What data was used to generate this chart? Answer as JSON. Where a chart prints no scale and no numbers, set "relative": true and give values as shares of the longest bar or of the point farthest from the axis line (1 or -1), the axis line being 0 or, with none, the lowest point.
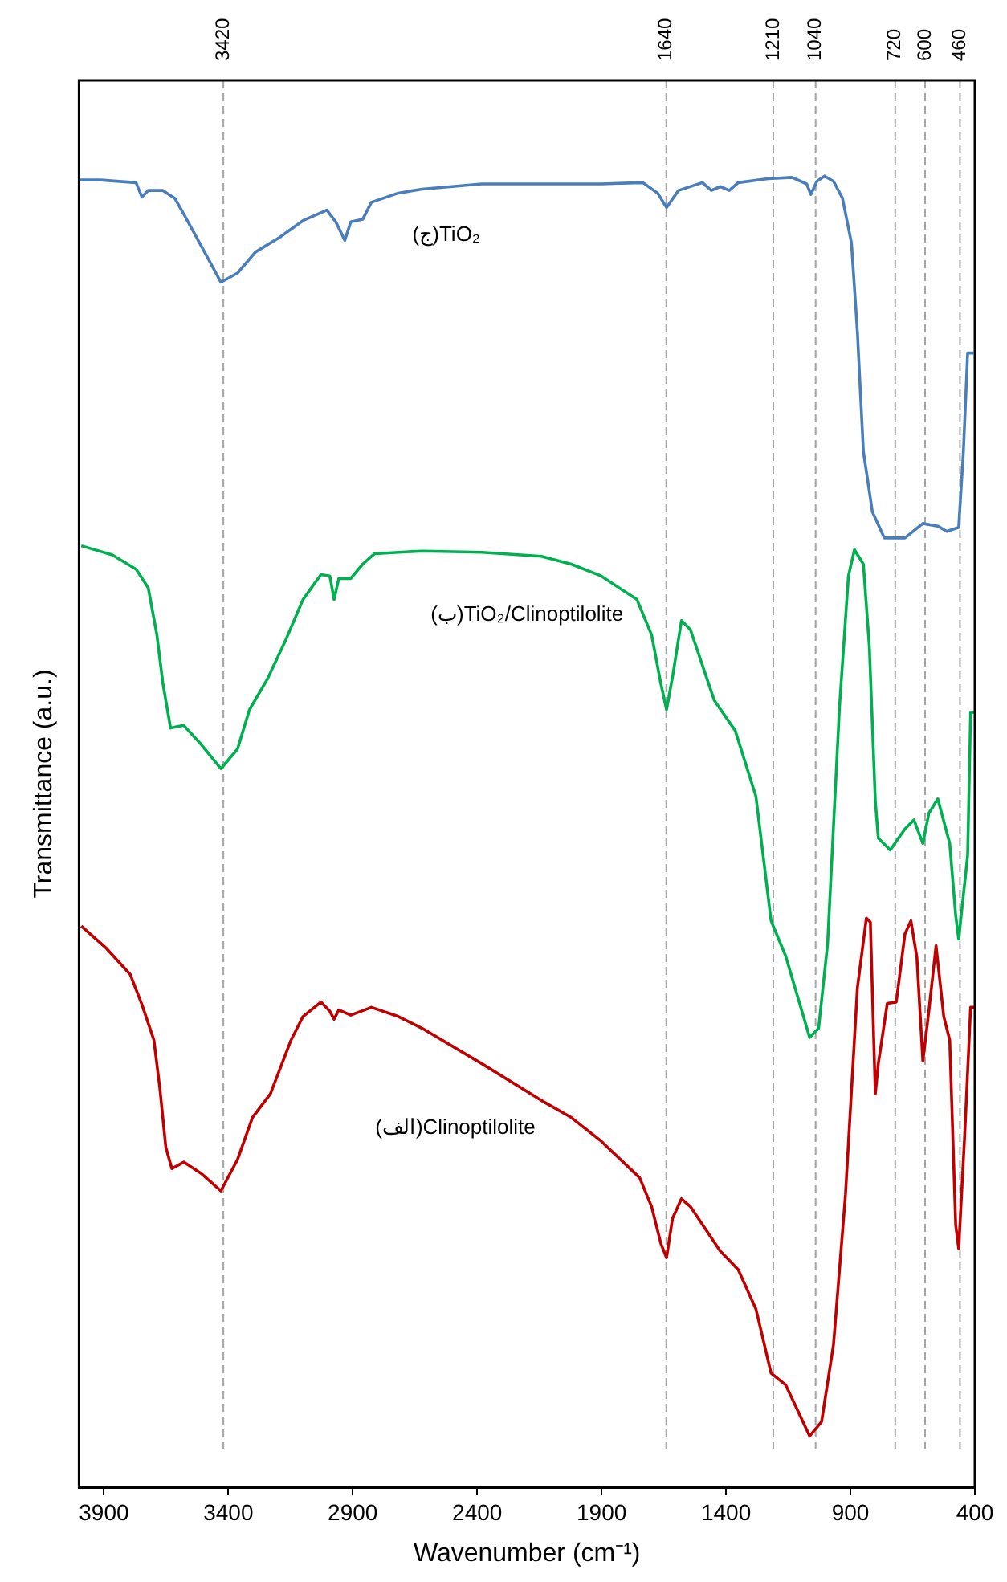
{
  "chart_data": {
    "type": "line",
    "relative": true,
    "xlabel": "Wavenumber (cm⁻¹)",
    "ylabel": "Transmittance (a.u.)",
    "xlim": [
      4000,
      400
    ],
    "xticks": [
      3900,
      3400,
      2900,
      2400,
      1900,
      1400,
      900,
      400
    ],
    "grid": false,
    "legend": false,
    "marker": "none",
    "line_style": "solid",
    "tick_labels": "x",
    "series": [
      {
        "name": "(ج)TiO₂",
        "color": "#4a7ebb",
        "x": [
          3998,
          3914,
          3771,
          3747,
          3722,
          3663,
          3615,
          3579,
          3507,
          3430,
          3363,
          3291,
          3196,
          3100,
          3004,
          2968,
          2932,
          2908,
          2860,
          2825,
          2717,
          2621,
          2381,
          1902,
          1734,
          1675,
          1639,
          1591,
          1495,
          1459,
          1423,
          1387,
          1351,
          1232,
          1135,
          1076,
          1059,
          1035,
          1004,
          968,
          932,
          896,
          872,
          848,
          812,
          764,
          681,
          609,
          549,
          513,
          465,
          446,
          429,
          405
        ],
        "values": [
          0.997,
          0.997,
          0.995,
          0.984,
          0.989,
          0.989,
          0.983,
          0.971,
          0.946,
          0.919,
          0.926,
          0.942,
          0.953,
          0.966,
          0.974,
          0.965,
          0.951,
          0.965,
          0.967,
          0.98,
          0.987,
          0.99,
          0.994,
          0.994,
          0.995,
          0.987,
          0.976,
          0.989,
          0.995,
          0.989,
          0.992,
          0.989,
          0.995,
          0.998,
          0.999,
          0.994,
          0.986,
          0.996,
          1.0,
          0.996,
          0.983,
          0.949,
          0.881,
          0.79,
          0.744,
          0.724,
          0.724,
          0.735,
          0.733,
          0.729,
          0.732,
          0.79,
          0.865,
          0.865
        ]
      },
      {
        "name": "(ب)TiO₂/Clinoptilolite",
        "color": "#00b050",
        "x": [
          3991,
          3866,
          3770,
          3722,
          3687,
          3663,
          3632,
          3579,
          3507,
          3430,
          3363,
          3315,
          3244,
          3172,
          3100,
          3028,
          2992,
          2975,
          2956,
          2908,
          2860,
          2812,
          2621,
          2381,
          2142,
          2022,
          1902,
          1758,
          1699,
          1662,
          1639,
          1615,
          1579,
          1543,
          1447,
          1363,
          1280,
          1219,
          1160,
          1064,
          1028,
          992,
          944,
          908,
          884,
          848,
          824,
          800,
          788,
          740,
          681,
          645,
          609,
          585,
          549,
          501,
          477,
          465,
          429,
          417,
          400
        ],
        "values": [
          0.718,
          0.711,
          0.7,
          0.686,
          0.65,
          0.613,
          0.579,
          0.581,
          0.566,
          0.548,
          0.563,
          0.593,
          0.616,
          0.645,
          0.677,
          0.696,
          0.695,
          0.677,
          0.693,
          0.693,
          0.704,
          0.712,
          0.714,
          0.713,
          0.71,
          0.704,
          0.695,
          0.677,
          0.65,
          0.613,
          0.593,
          0.618,
          0.661,
          0.654,
          0.6,
          0.577,
          0.527,
          0.432,
          0.405,
          0.343,
          0.35,
          0.414,
          0.595,
          0.695,
          0.715,
          0.704,
          0.641,
          0.523,
          0.495,
          0.486,
          0.502,
          0.509,
          0.491,
          0.514,
          0.525,
          0.491,
          0.436,
          0.418,
          0.482,
          0.591,
          0.591
        ]
      },
      {
        "name": "(الف)Clinoptilolite",
        "color": "#c00000",
        "x": [
          3991,
          3890,
          3794,
          3747,
          3699,
          3675,
          3651,
          3627,
          3579,
          3507,
          3430,
          3363,
          3303,
          3231,
          3148,
          3100,
          3028,
          2992,
          2975,
          2956,
          2908,
          2825,
          2717,
          2621,
          2381,
          2142,
          2022,
          1902,
          1747,
          1699,
          1662,
          1639,
          1615,
          1579,
          1543,
          1423,
          1351,
          1280,
          1219,
          1160,
          1064,
          1016,
          968,
          920,
          872,
          836,
          820,
          800,
          788,
          752,
          716,
          681,
          657,
          633,
          609,
          585,
          556,
          525,
          501,
          477,
          465,
          441,
          417,
          400
        ],
        "values": [
          0.428,
          0.411,
          0.391,
          0.368,
          0.341,
          0.304,
          0.259,
          0.243,
          0.248,
          0.239,
          0.226,
          0.25,
          0.282,
          0.3,
          0.341,
          0.359,
          0.37,
          0.363,
          0.357,
          0.364,
          0.36,
          0.366,
          0.359,
          0.35,
          0.323,
          0.295,
          0.282,
          0.264,
          0.236,
          0.214,
          0.186,
          0.175,
          0.205,
          0.22,
          0.214,
          0.18,
          0.166,
          0.136,
          0.087,
          0.078,
          0.039,
          0.05,
          0.109,
          0.223,
          0.381,
          0.434,
          0.431,
          0.3,
          0.323,
          0.369,
          0.37,
          0.422,
          0.432,
          0.404,
          0.325,
          0.363,
          0.413,
          0.359,
          0.341,
          0.2,
          0.182,
          0.268,
          0.366,
          0.366
        ]
      }
    ],
    "ref_lines": [
      {
        "axis": "x",
        "value": 3420,
        "label": "3420",
        "color": "#a6a6a6",
        "line_style": "dashed"
      },
      {
        "axis": "x",
        "value": 1640,
        "label": "1640",
        "color": "#a6a6a6",
        "line_style": "dashed"
      },
      {
        "axis": "x",
        "value": 1210,
        "label": "1210",
        "color": "#a6a6a6",
        "line_style": "dashed"
      },
      {
        "axis": "x",
        "value": 1040,
        "label": "1040",
        "color": "#a6a6a6",
        "line_style": "dashed"
      },
      {
        "axis": "x",
        "value": 720,
        "label": "720",
        "color": "#a6a6a6",
        "line_style": "dashed"
      },
      {
        "axis": "x",
        "value": 600,
        "label": "600",
        "color": "#a6a6a6",
        "line_style": "dashed"
      },
      {
        "axis": "x",
        "value": 460,
        "label": "460",
        "color": "#a6a6a6",
        "line_style": "dashed"
      }
    ]
  }
}
